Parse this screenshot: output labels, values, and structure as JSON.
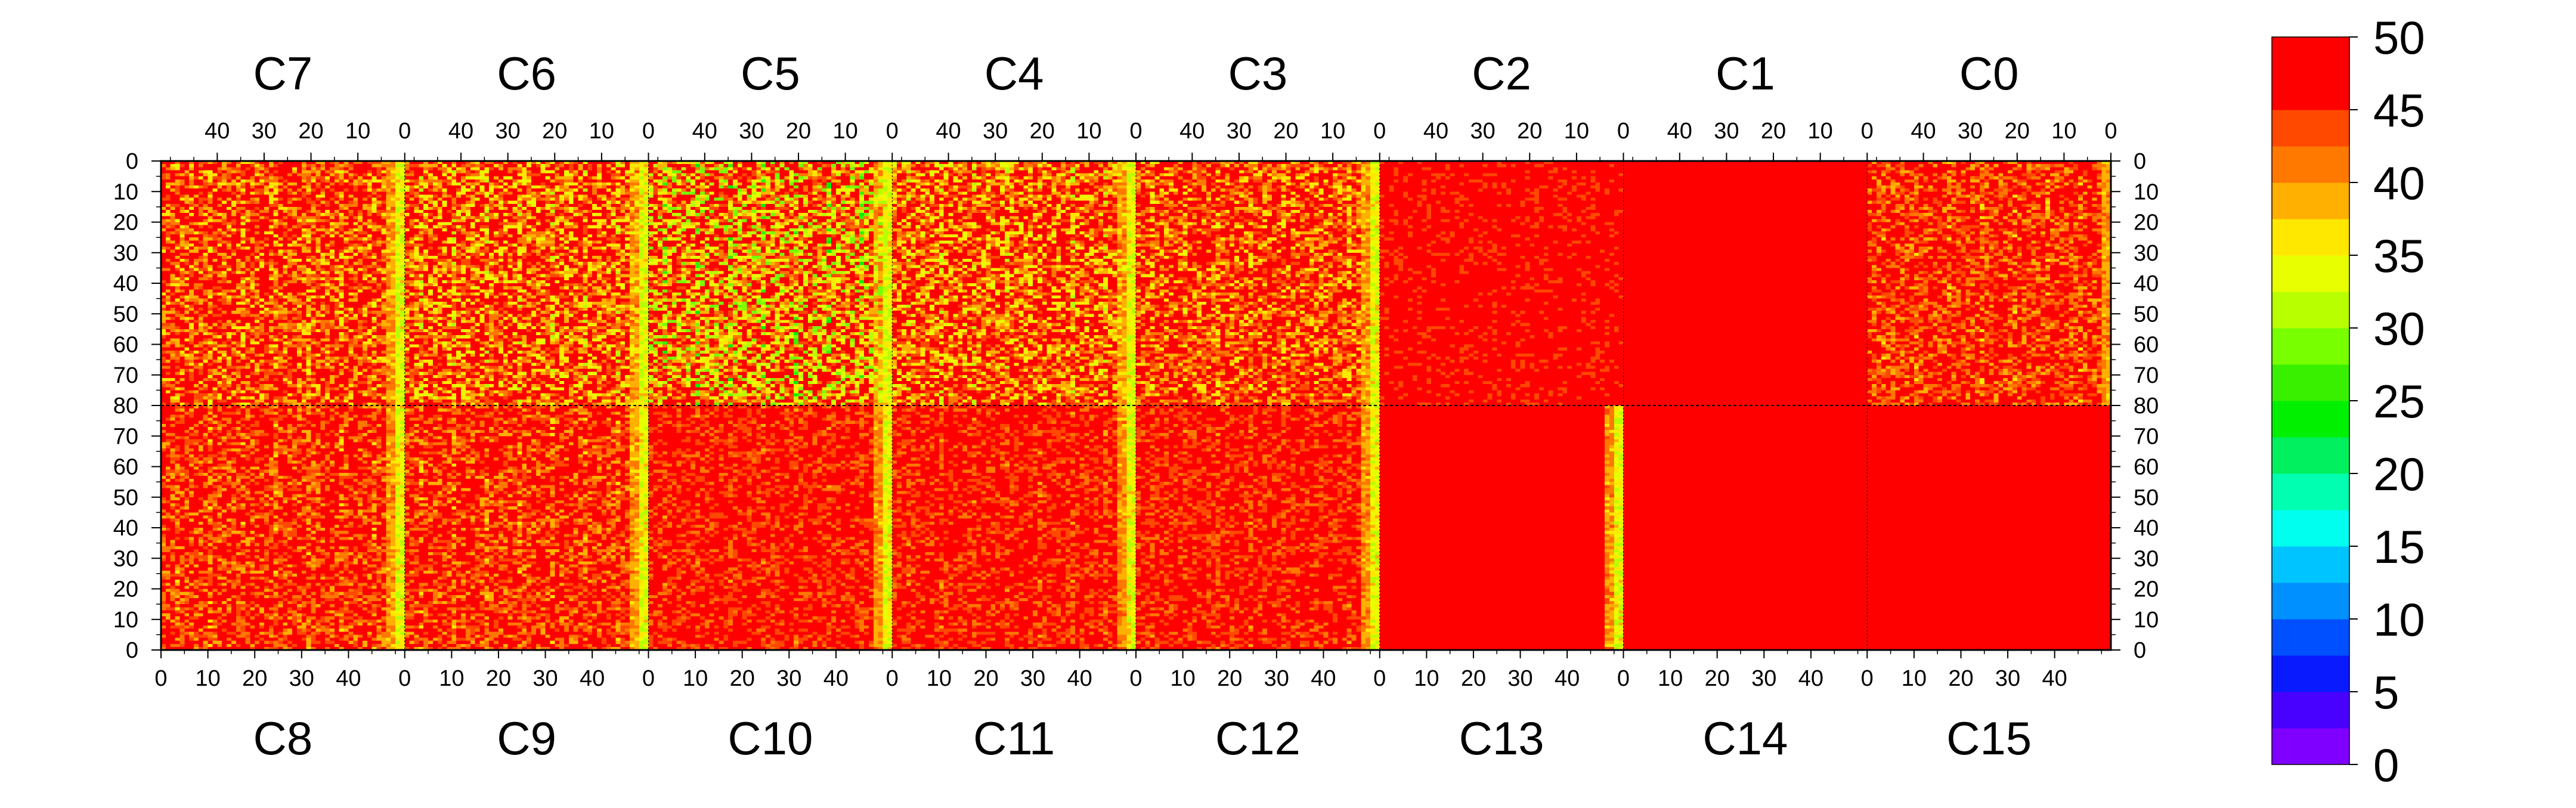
{
  "chart_data": {
    "type": "heatmap",
    "title": "",
    "top_chip_labels": [
      "C7",
      "C6",
      "C5",
      "C4",
      "C3",
      "C2",
      "C1",
      "C0"
    ],
    "bottom_chip_labels": [
      "C8",
      "C9",
      "C10",
      "C11",
      "C12",
      "C13",
      "C14",
      "C15"
    ],
    "top_x_ticks": [
      "40",
      "30",
      "20",
      "10",
      "0"
    ],
    "bottom_x_ticks": [
      "0",
      "10",
      "20",
      "30",
      "40"
    ],
    "top_y_ticks": [
      "0",
      "10",
      "20",
      "30",
      "40",
      "50",
      "60",
      "70",
      "80"
    ],
    "bottom_y_ticks": [
      "80",
      "70",
      "60",
      "50",
      "40",
      "30",
      "20",
      "10",
      "0"
    ],
    "columns_per_chip": 52,
    "rows_per_half": 80,
    "x_range": [
      0,
      52
    ],
    "y_range": [
      0,
      80
    ],
    "chip_typical_values": {
      "C7": 45,
      "C6": 44,
      "C5": 42,
      "C4": 44,
      "C3": 45,
      "C2": 48,
      "C1": 50,
      "C0": 46,
      "C8": 46,
      "C9": 46,
      "C10": 47,
      "C11": 47,
      "C12": 47,
      "C13": 49,
      "C14": 50,
      "C15": 50
    },
    "edge_column_value": 34,
    "colorbar": {
      "range": [
        0,
        50
      ],
      "tick_labels": [
        "50",
        "45",
        "40",
        "35",
        "30",
        "25",
        "20",
        "15",
        "10",
        "5",
        "0"
      ],
      "colors": [
        "#8000ff",
        "#4800ff",
        "#0a1aff",
        "#0050ff",
        "#0090ff",
        "#00c4ff",
        "#00ffee",
        "#00ffb0",
        "#00f060",
        "#00f000",
        "#38f000",
        "#78ff00",
        "#b8ff00",
        "#e8ff00",
        "#ffe800",
        "#ffb000",
        "#ff7800",
        "#ff4800",
        "#ff0000",
        "#ff0000"
      ]
    },
    "legend_position": "right"
  }
}
